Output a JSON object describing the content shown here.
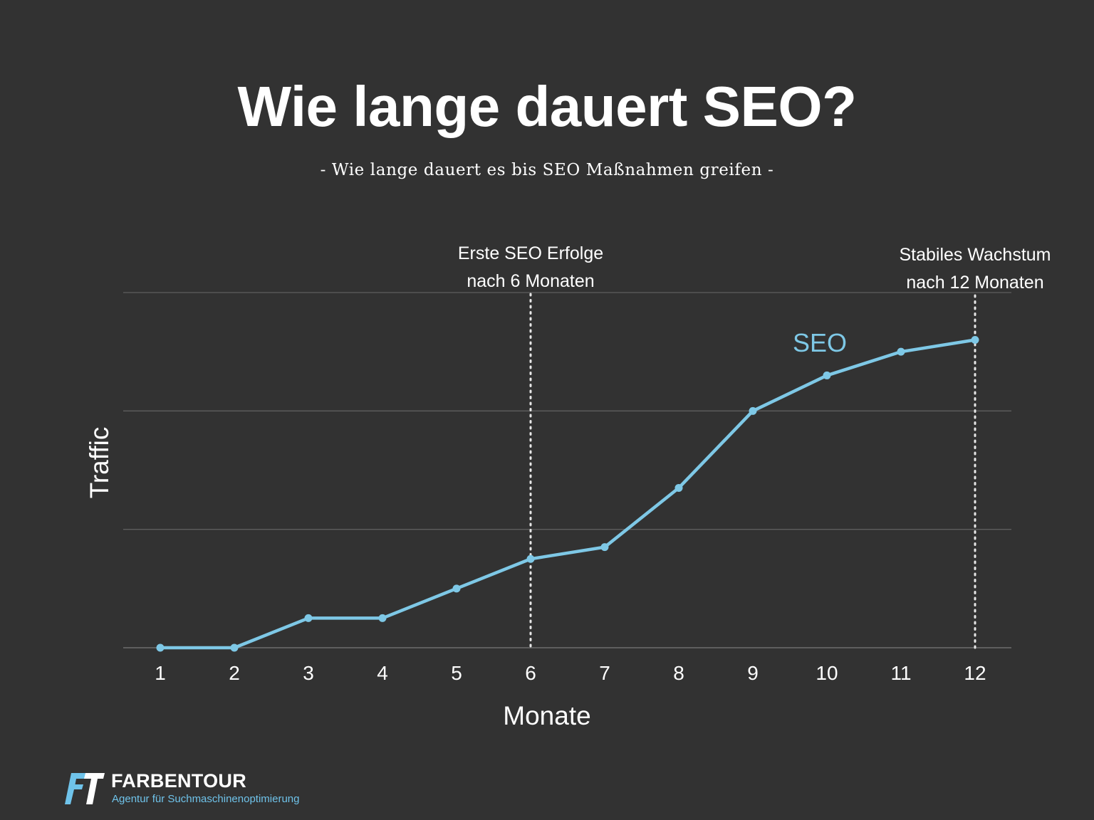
{
  "header": {
    "title": "Wie lange dauert SEO?",
    "subtitle": "- Wie lange dauert es bis SEO Maßnahmen greifen -"
  },
  "chart_data": {
    "type": "line",
    "title": "Wie lange dauert SEO?",
    "subtitle": "- Wie lange dauert es bis SEO Maßnahmen greifen -",
    "xlabel": "Monate",
    "ylabel": "Traffic",
    "x": [
      1,
      2,
      3,
      4,
      5,
      6,
      7,
      8,
      9,
      10,
      11,
      12
    ],
    "xtick_labels": [
      "1",
      "2",
      "3",
      "4",
      "5",
      "6",
      "7",
      "8",
      "9",
      "10",
      "11",
      "12"
    ],
    "ylim": [
      0,
      3
    ],
    "y_gridlines": [
      0,
      1,
      2,
      3
    ],
    "ytick_labels_shown": false,
    "series": [
      {
        "name": "SEO",
        "color": "#7ec8e6",
        "values": [
          0,
          0,
          0.25,
          0.25,
          0.5,
          0.75,
          0.85,
          1.35,
          2.0,
          2.3,
          2.5,
          2.6
        ]
      }
    ],
    "annotations": [
      {
        "x": 6,
        "style": "dotted-vertical",
        "lines": [
          "Erste SEO Erfolge",
          "nach 6 Monaten"
        ]
      },
      {
        "x": 12,
        "style": "dotted-vertical",
        "lines": [
          "Stabiles Wachstum",
          "nach 12 Monaten"
        ]
      }
    ],
    "series_label": {
      "text": "SEO",
      "near_x": 9.9
    },
    "grid": true,
    "legend": "none"
  },
  "brand": {
    "name": "FARBENTOUR",
    "tagline": "Agentur für Suchmaschinenoptimierung",
    "accent_color": "#6fc3ea"
  },
  "colors": {
    "background": "#323232",
    "grid": "#5e5e5e",
    "text": "#ffffff",
    "line": "#7ec8e6"
  }
}
